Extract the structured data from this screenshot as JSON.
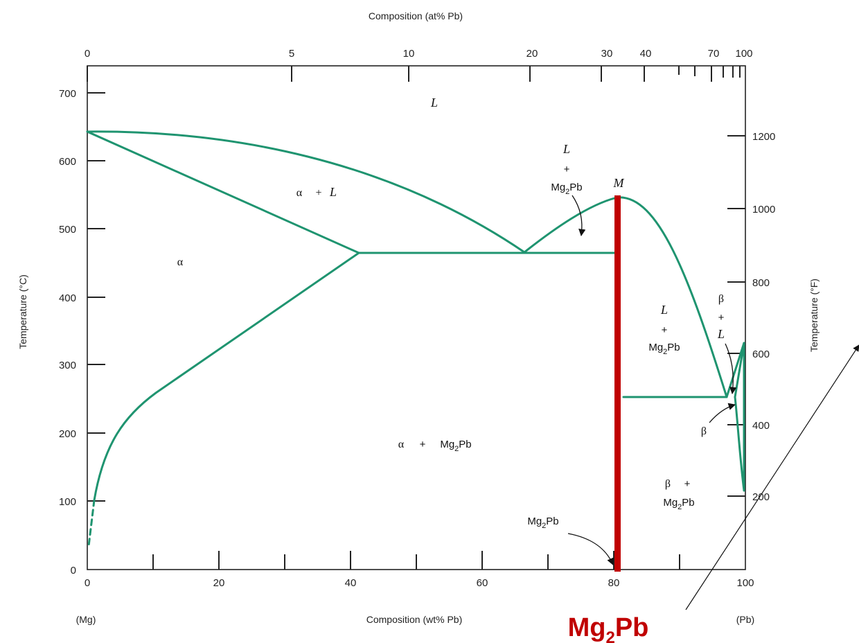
{
  "top_axis": {
    "title": "Composition (at% Pb)",
    "tick_labels": [
      "0",
      "5",
      "10",
      "20",
      "30",
      "40",
      "70",
      "100"
    ]
  },
  "bottom_axis": {
    "title": "Composition (wt% Pb)",
    "tick_labels": [
      "0",
      "20",
      "40",
      "60",
      "80",
      "100"
    ],
    "left_end_label": "(Mg)",
    "right_end_label": "(Pb)"
  },
  "left_axis": {
    "title": "Temperature (°C)",
    "tick_labels": [
      "0",
      "100",
      "200",
      "300",
      "400",
      "500",
      "600",
      "700"
    ]
  },
  "right_axis": {
    "title": "Temperature (°F)",
    "tick_labels": [
      "200",
      "400",
      "600",
      "800",
      "1000",
      "1200"
    ]
  },
  "regions": {
    "liquid": "L",
    "alpha": "α",
    "alpha_plus_l": {
      "a": "α",
      "plus": "+",
      "l": "L"
    },
    "l_plus_mg2pb_left": {
      "l": "L",
      "plus": "+",
      "mg": "Mg",
      "sub": "2",
      "pb": "Pb"
    },
    "l_plus_mg2pb_right": {
      "l": "L",
      "plus": "+",
      "mg": "Mg",
      "sub": "2",
      "pb": "Pb"
    },
    "alpha_plus_mg2pb": {
      "a": "α",
      "plus": "+",
      "mg": "Mg",
      "sub": "2",
      "pb": "Pb"
    },
    "beta_plus_l": {
      "b": "β",
      "plus": "+",
      "l": "L"
    },
    "beta": "β",
    "beta_plus_mg2pb": {
      "b": "β",
      "plus": "+",
      "mg": "Mg",
      "sub": "2",
      "pb": "Pb"
    },
    "congruent_point": "M",
    "compound_callout": {
      "mg": "Mg",
      "sub": "2",
      "pb": "Pb"
    }
  },
  "annotation": {
    "label_main": "Mg",
    "label_sub": "2",
    "label_tail": "Pb",
    "highlight_color": "#c00000"
  },
  "colors": {
    "phase_line": "#1f9470",
    "axis": "#222222"
  }
}
